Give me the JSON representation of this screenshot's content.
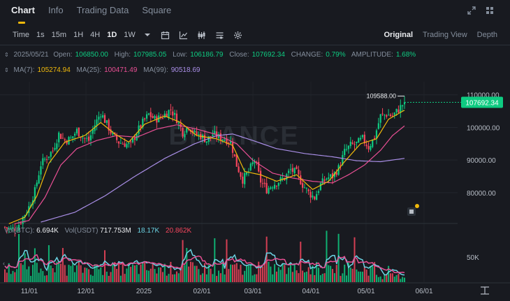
{
  "tabs": [
    {
      "label": "Chart"
    },
    {
      "label": "Info"
    },
    {
      "label": "Trading Data"
    },
    {
      "label": "Square"
    }
  ],
  "toolbar": {
    "time_label": "Time",
    "intervals": [
      "1s",
      "15m",
      "1H",
      "4H",
      "1D",
      "1W"
    ],
    "active_interval": "1D",
    "views": [
      "Original",
      "Trading View",
      "Depth"
    ],
    "active_view": "Original"
  },
  "ohlc": {
    "date": "2025/05/21",
    "open_label": "Open:",
    "open": "106850.00",
    "high_label": "High:",
    "high": "107985.05",
    "low_label": "Low:",
    "low": "106186.79",
    "close_label": "Close:",
    "close": "107692.34",
    "change_label": "CHANGE:",
    "change": "0.79%",
    "amplitude_label": "AMPLITUDE:",
    "amplitude": "1.68%"
  },
  "ma": {
    "ma7_label": "MA(7):",
    "ma7": "105274.94",
    "ma25_label": "MA(25):",
    "ma25": "100471.49",
    "ma99_label": "MA(99):",
    "ma99": "90518.69"
  },
  "volume_legend": {
    "btc_label": "Vol(BTC):",
    "btc": "6.694K",
    "usdt_label": "Vol(USDT)",
    "usdt": "717.753M",
    "ma1": "18.17K",
    "ma2": "20.862K"
  },
  "watermark": "BINANCE",
  "colors": {
    "up": "#0ecb81",
    "down": "#f6465d",
    "ma7": "#f0b90b",
    "ma25": "#e94f94",
    "ma99": "#a98ee6",
    "vol_ma1": "#6bd3e3",
    "vol_ma2": "#e94f94",
    "price_tag": "#0ecb81"
  },
  "chart_data": {
    "type": "candlestick",
    "symbol": "BTC/USDT",
    "interval": "1D",
    "y_ticks": [
      110000,
      100000,
      90000,
      80000
    ],
    "y_tick_labels": [
      "110000.00",
      "100000.00",
      "90000.00",
      "80000.00"
    ],
    "ylim": [
      71000,
      114000
    ],
    "x_ticks": [
      "11/01",
      "12/01",
      "2025",
      "02/01",
      "03/01",
      "04/01",
      "05/01",
      "06/01"
    ],
    "high_annotation": "109588.00",
    "current_price": 107692.34,
    "current_price_label": "107692.34",
    "volume_tick": "50K",
    "anchors_close": [
      [
        0,
        69400
      ],
      [
        3,
        68800
      ],
      [
        6,
        69300
      ],
      [
        9,
        72500
      ],
      [
        12,
        75600
      ],
      [
        15,
        80500
      ],
      [
        18,
        88700
      ],
      [
        21,
        91000
      ],
      [
        24,
        93000
      ],
      [
        27,
        98000
      ],
      [
        30,
        96000
      ],
      [
        33,
        96500
      ],
      [
        36,
        99000
      ],
      [
        39,
        97000
      ],
      [
        42,
        96000
      ],
      [
        45,
        100800
      ],
      [
        48,
        104500
      ],
      [
        51,
        101000
      ],
      [
        54,
        97500
      ],
      [
        57,
        95500
      ],
      [
        60,
        95000
      ],
      [
        63,
        94500
      ],
      [
        66,
        98500
      ],
      [
        69,
        101500
      ],
      [
        72,
        104000
      ],
      [
        75,
        102500
      ],
      [
        78,
        103000
      ],
      [
        80,
        104000
      ],
      [
        83,
        105500
      ],
      [
        86,
        102500
      ],
      [
        89,
        98500
      ],
      [
        92,
        100500
      ],
      [
        95,
        98000
      ],
      [
        98,
        97500
      ],
      [
        101,
        96000
      ],
      [
        104,
        98000
      ],
      [
        107,
        97000
      ],
      [
        110,
        96500
      ],
      [
        113,
        95500
      ],
      [
        116,
        88500
      ],
      [
        119,
        84000
      ],
      [
        122,
        86500
      ],
      [
        125,
        90000
      ],
      [
        128,
        83500
      ],
      [
        131,
        81000
      ],
      [
        134,
        82500
      ],
      [
        137,
        83500
      ],
      [
        140,
        84500
      ],
      [
        143,
        87000
      ],
      [
        146,
        86000
      ],
      [
        149,
        82500
      ],
      [
        152,
        80000
      ],
      [
        155,
        78500
      ],
      [
        158,
        82500
      ],
      [
        161,
        84500
      ],
      [
        164,
        85000
      ],
      [
        167,
        87500
      ],
      [
        170,
        92500
      ],
      [
        173,
        94500
      ],
      [
        176,
        95000
      ],
      [
        179,
        96500
      ],
      [
        182,
        94000
      ],
      [
        185,
        97000
      ],
      [
        188,
        103500
      ],
      [
        191,
        104000
      ],
      [
        194,
        103500
      ],
      [
        197,
        105500
      ],
      [
        200,
        107692
      ]
    ],
    "ma7_anchors": [
      [
        2,
        70500
      ],
      [
        10,
        72500
      ],
      [
        16,
        79000
      ],
      [
        22,
        89000
      ],
      [
        30,
        95500
      ],
      [
        40,
        97500
      ],
      [
        48,
        101500
      ],
      [
        55,
        98000
      ],
      [
        62,
        95500
      ],
      [
        70,
        101000
      ],
      [
        80,
        103500
      ],
      [
        88,
        101500
      ],
      [
        96,
        97500
      ],
      [
        106,
        96500
      ],
      [
        114,
        94500
      ],
      [
        120,
        86500
      ],
      [
        128,
        85500
      ],
      [
        136,
        83500
      ],
      [
        146,
        85500
      ],
      [
        154,
        81000
      ],
      [
        162,
        83500
      ],
      [
        170,
        89500
      ],
      [
        178,
        95000
      ],
      [
        186,
        96500
      ],
      [
        192,
        102500
      ],
      [
        200,
        105275
      ]
    ],
    "ma25_anchors": [
      [
        5,
        70500
      ],
      [
        12,
        71500
      ],
      [
        20,
        78500
      ],
      [
        28,
        88500
      ],
      [
        36,
        93500
      ],
      [
        46,
        96000
      ],
      [
        56,
        97500
      ],
      [
        66,
        97000
      ],
      [
        76,
        99500
      ],
      [
        86,
        100800
      ],
      [
        96,
        99500
      ],
      [
        106,
        97800
      ],
      [
        116,
        95000
      ],
      [
        124,
        90000
      ],
      [
        134,
        86000
      ],
      [
        144,
        84500
      ],
      [
        154,
        83500
      ],
      [
        164,
        83000
      ],
      [
        172,
        85500
      ],
      [
        180,
        88500
      ],
      [
        188,
        93000
      ],
      [
        194,
        97500
      ],
      [
        200,
        100471
      ]
    ],
    "ma99_anchors": [
      [
        18,
        71000
      ],
      [
        35,
        74000
      ],
      [
        50,
        79000
      ],
      [
        65,
        85000
      ],
      [
        80,
        90500
      ],
      [
        95,
        95000
      ],
      [
        106,
        97500
      ],
      [
        114,
        98000
      ],
      [
        124,
        96000
      ],
      [
        136,
        93500
      ],
      [
        150,
        92000
      ],
      [
        164,
        91000
      ],
      [
        176,
        89800
      ],
      [
        188,
        89500
      ],
      [
        200,
        90519
      ]
    ]
  }
}
